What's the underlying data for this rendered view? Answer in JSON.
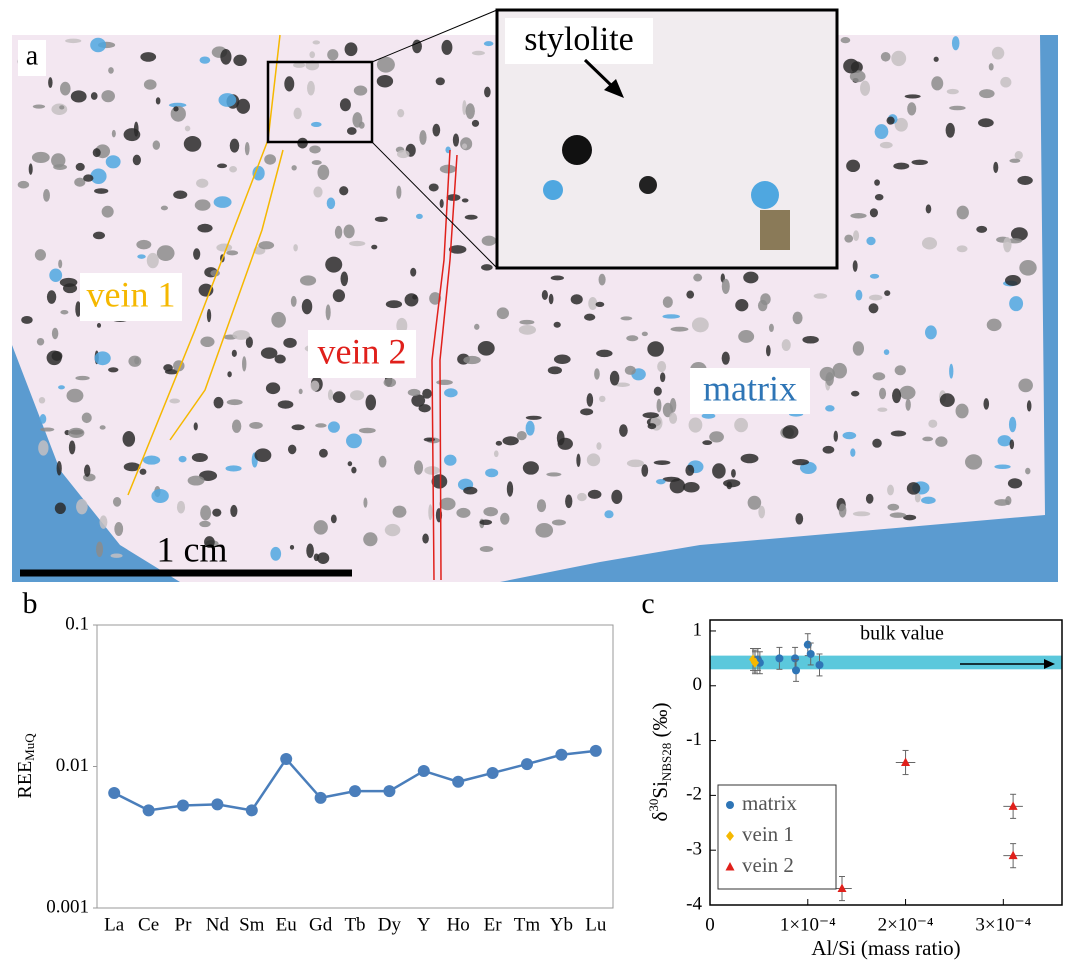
{
  "image_panel": {
    "panel": "a",
    "vein_1": "vein 1",
    "vein_2": "vein 2",
    "matrix": "matrix",
    "inset_label": "stylolite",
    "scale_bar": "1 cm"
  },
  "chart_data": [
    {
      "type": "line",
      "panel": "b",
      "log_y": true,
      "ylabel": "REE",
      "ylabel_subscript": "MuQ",
      "categories": [
        "La",
        "Ce",
        "Pr",
        "Nd",
        "Sm",
        "Eu",
        "Gd",
        "Tb",
        "Dy",
        "Y",
        "Ho",
        "Er",
        "Tm",
        "Yb",
        "Lu"
      ],
      "values": [
        0.0065,
        0.0049,
        0.0053,
        0.0054,
        0.0049,
        0.0113,
        0.006,
        0.0067,
        0.0067,
        0.0093,
        0.0078,
        0.009,
        0.0104,
        0.0121,
        0.0129
      ],
      "color": "#4a7ebb",
      "ylim": [
        0.001,
        0.1
      ],
      "yticks": [
        0.001,
        0.01,
        0.1
      ],
      "grid": false
    },
    {
      "type": "scatter",
      "panel": "c",
      "xlabel": "Al/Si (mass ratio)",
      "ylabel": {
        "prefix": "δ",
        "sup": "30",
        "main": "Si",
        "sub": "NBS28",
        "suffix": " (‰)"
      },
      "xlim": [
        0,
        0.00036
      ],
      "xticks": [
        0,
        {
          "value": 0.0001,
          "label": "1×10⁻⁴"
        },
        {
          "value": 0.0002,
          "label": "2×10⁻⁴"
        },
        {
          "value": 0.0003,
          "label": "3×10⁻⁴"
        }
      ],
      "ylim": [
        -4,
        1.2
      ],
      "yticks": [
        -4,
        -3,
        -2,
        -1,
        0,
        1
      ],
      "band": {
        "label": "bulk value",
        "range": [
          0.3,
          0.55
        ],
        "color": "#5bc8dc"
      },
      "legend": "bottom-left",
      "series": [
        {
          "name": "matrix",
          "color": "#2e75b6",
          "marker": "circle",
          "x": [
            4.6e-05,
            4.9e-05,
            5.1e-05,
            7.1e-05,
            8.7e-05,
            8.8e-05,
            0.0001,
            0.000103,
            0.000112
          ],
          "values": [
            0.45,
            0.48,
            0.42,
            0.5,
            0.5,
            0.28,
            0.75,
            0.58,
            0.38
          ],
          "yerr": [
            0.2,
            0.2,
            0.2,
            0.2,
            0.2,
            0.2,
            0.2,
            0.2,
            0.2
          ]
        },
        {
          "name": "vein 1",
          "color": "#f5b800",
          "marker": "diamond",
          "x": [
            4.4e-05,
            4.6e-05
          ],
          "values": [
            0.48,
            0.42
          ],
          "yerr": [
            0.2,
            0.2
          ]
        },
        {
          "name": "vein 2",
          "color": "#e0201b",
          "marker": "triangle",
          "x": [
            0.000135,
            0.0002,
            0.00031,
            0.00031
          ],
          "values": [
            -3.7,
            -1.4,
            -2.2,
            -3.1
          ],
          "yerr": [
            0.22,
            0.22,
            0.22,
            0.22
          ],
          "xerr": [
            1e-05,
            1e-05,
            1e-05,
            1e-05
          ]
        }
      ]
    }
  ]
}
